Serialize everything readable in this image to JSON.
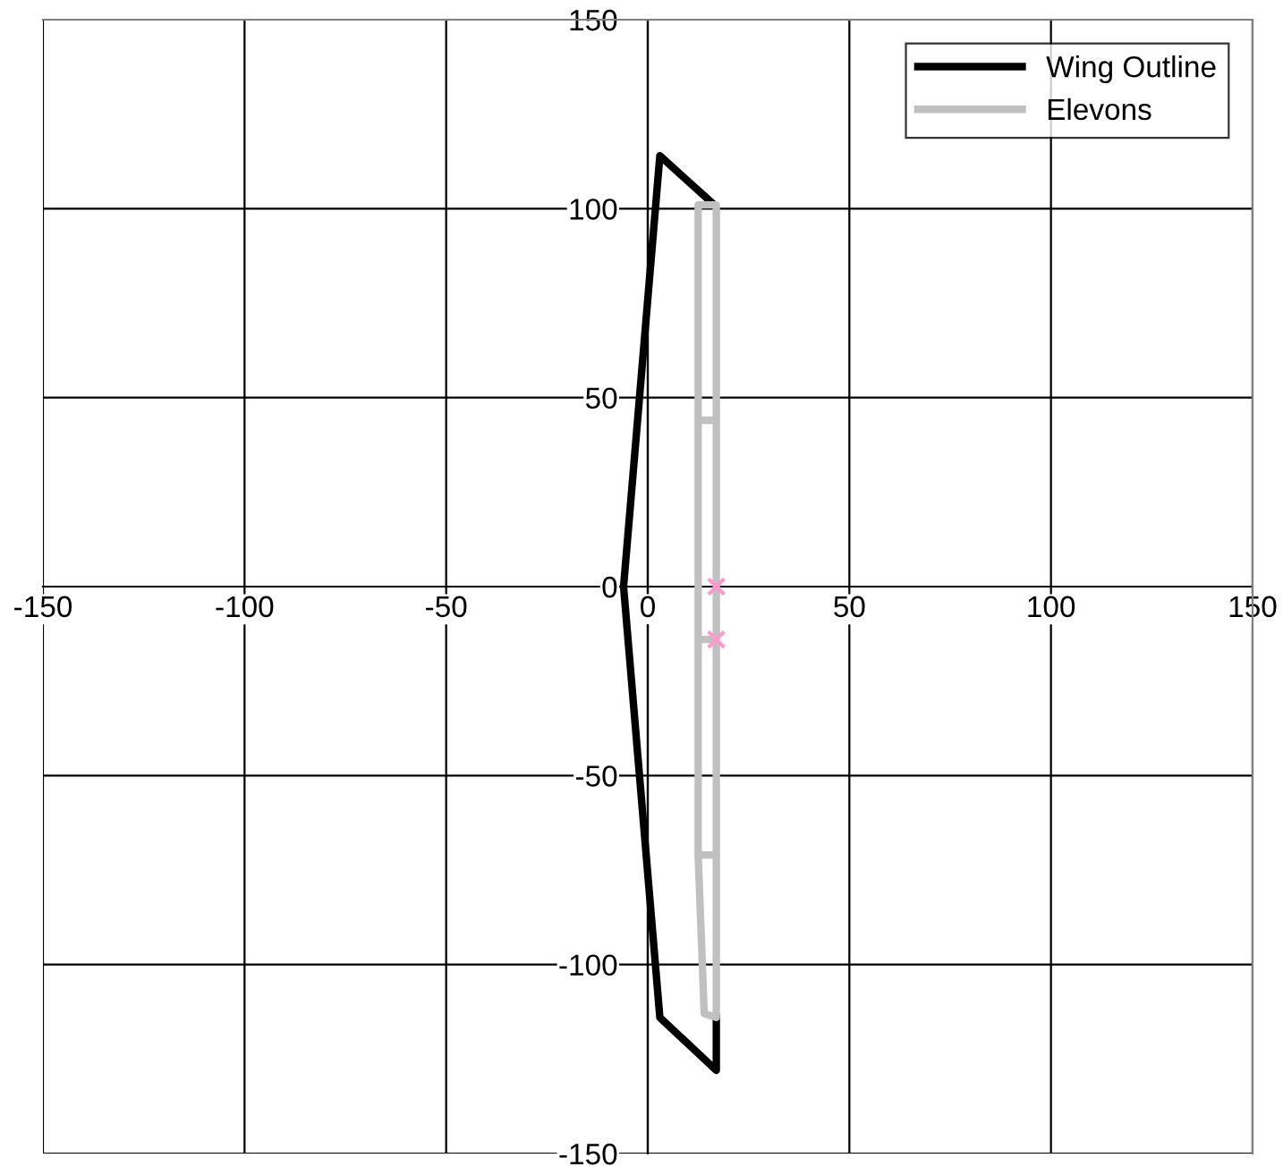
{
  "chart_data": {
    "type": "line",
    "xlim": [
      -150,
      150
    ],
    "ylim": [
      -150,
      150
    ],
    "xticks": [
      -150,
      -100,
      -50,
      0,
      50,
      100,
      150
    ],
    "yticks": [
      -150,
      -100,
      -50,
      0,
      50,
      100,
      150
    ],
    "grid": true,
    "legend": "top right",
    "series": [
      {
        "name": "Wing Outline",
        "color": "#000000",
        "x": [
          16.5,
          3,
          -6,
          3,
          17,
          17
        ],
        "values": [
          101,
          114,
          0,
          -114,
          -128,
          -114
        ]
      },
      {
        "name": "Elevons",
        "color": "#c0c0c0",
        "x": [
          12.5,
          12.5,
          17,
          17,
          14,
          12.5,
          12.5,
          17,
          17,
          12.5,
          12.5,
          17
        ],
        "values": [
          44,
          101,
          101,
          -114,
          -113,
          -71,
          44,
          44,
          -14,
          -14,
          -71,
          -71
        ]
      },
      {
        "type": "scatter",
        "marker": "cross",
        "color": "#ff99cc",
        "x": [
          17,
          17
        ],
        "values": [
          0,
          -14
        ]
      }
    ]
  }
}
